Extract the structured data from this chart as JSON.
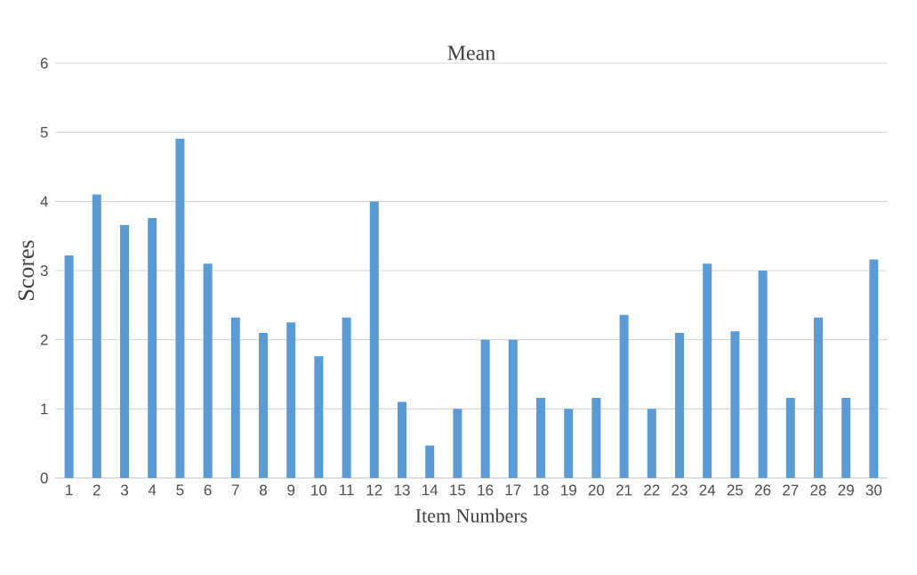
{
  "chart_data": {
    "type": "bar",
    "title": "Mean",
    "xlabel": "Item Numbers",
    "ylabel": "Scores",
    "categories": [
      "1",
      "2",
      "3",
      "4",
      "5",
      "6",
      "7",
      "8",
      "9",
      "10",
      "11",
      "12",
      "13",
      "14",
      "15",
      "16",
      "17",
      "18",
      "19",
      "20",
      "21",
      "22",
      "23",
      "24",
      "25",
      "26",
      "27",
      "28",
      "29",
      "30"
    ],
    "values": [
      3.22,
      4.1,
      3.66,
      3.76,
      4.91,
      3.1,
      2.32,
      2.1,
      2.25,
      1.76,
      2.32,
      4.0,
      1.1,
      0.47,
      1.0,
      2.0,
      2.0,
      1.16,
      1.0,
      1.16,
      2.36,
      1.0,
      2.1,
      3.1,
      2.12,
      3.0,
      1.16,
      2.32,
      1.16,
      3.16
    ],
    "color": "#5b9bd5",
    "ylim": [
      0,
      6
    ],
    "yticks": [
      0,
      1,
      2,
      3,
      4,
      5,
      6
    ],
    "grid": "y"
  }
}
